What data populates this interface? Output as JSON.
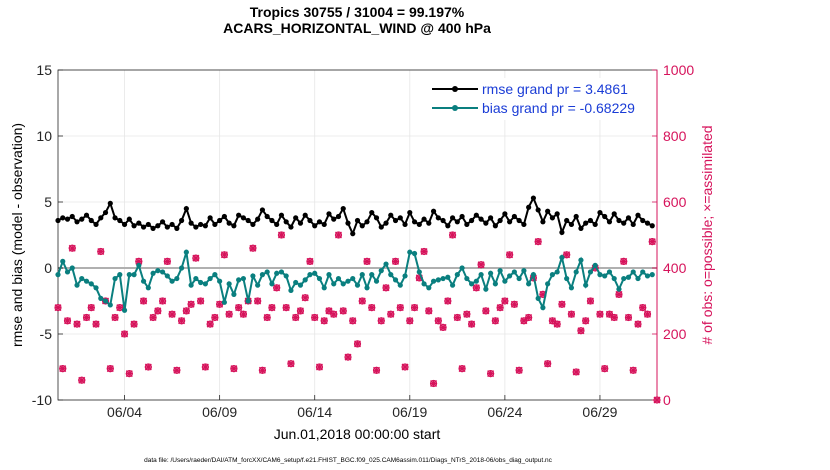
{
  "chart_data": {
    "type": "line",
    "title": [
      "Tropics 30755 / 31004 = 99.197%",
      "ACARS_HORIZONTAL_WIND @ 400 hPa"
    ],
    "xlabel": "Jun.01,2018 00:00:00 start",
    "ylabel_left": "rmse and bias (model - observation)",
    "ylabel_right": "# of obs: o=possible; ×=assimilated",
    "ylim_left": [
      -10,
      15
    ],
    "ylim_right": [
      0,
      1000
    ],
    "yticks_left": [
      "-10",
      "-5",
      "0",
      "5",
      "10",
      "15"
    ],
    "yticks_right": [
      "0",
      "200",
      "400",
      "600",
      "800",
      "1000"
    ],
    "xticks": [
      "06/04",
      "06/09",
      "06/14",
      "06/19",
      "06/24",
      "06/29"
    ],
    "xtick_days": [
      3.5,
      8.5,
      13.5,
      18.5,
      23.5,
      28.5
    ],
    "xlim_days": [
      0,
      31.5
    ],
    "step_hours": 6,
    "grid": true,
    "legend_position": "top-right",
    "colors": {
      "rmse": "#000000",
      "bias": "#0a7f7f",
      "obs": "#d6135b",
      "zero": "#b0b0b0"
    },
    "series": [
      {
        "name": "rmse grand pr = 3.4861",
        "values": [
          3.6,
          3.8,
          3.7,
          3.9,
          3.5,
          3.7,
          4.0,
          3.6,
          3.3,
          3.8,
          4.2,
          4.9,
          3.8,
          3.6,
          3.3,
          3.7,
          3.2,
          3.4,
          3.1,
          3.3,
          3.0,
          3.2,
          3.5,
          3.1,
          3.3,
          3.0,
          3.6,
          4.5,
          3.4,
          3.1,
          3.3,
          3.2,
          3.8,
          3.3,
          3.6,
          3.9,
          3.4,
          3.2,
          4.0,
          3.8,
          3.6,
          3.3,
          3.7,
          4.4,
          3.9,
          3.6,
          3.3,
          4.0,
          3.5,
          3.1,
          3.8,
          3.4,
          4.0,
          3.6,
          3.2,
          3.5,
          3.3,
          4.1,
          3.7,
          3.9,
          4.5,
          3.4,
          2.6,
          3.6,
          3.2,
          3.5,
          4.2,
          3.8,
          3.1,
          3.4,
          4.0,
          3.6,
          3.8,
          3.3,
          4.2,
          3.5,
          3.3,
          3.7,
          3.4,
          4.3,
          3.8,
          3.6,
          3.2,
          3.8,
          3.5,
          3.9,
          3.3,
          3.6,
          4.0,
          3.7,
          3.4,
          3.8,
          3.2,
          3.6,
          4.1,
          3.5,
          3.9,
          3.6,
          3.3,
          4.6,
          5.3,
          4.4,
          3.5,
          4.3,
          3.8,
          4.1,
          2.7,
          3.6,
          3.3,
          3.9,
          3.0,
          3.4,
          3.6,
          3.3,
          4.2,
          3.9,
          3.5,
          4.1,
          3.6,
          3.4,
          3.8,
          3.3,
          4.0,
          3.6,
          3.4,
          3.2
        ]
      },
      {
        "name": "bias grand pr = -0.68229",
        "values": [
          -0.5,
          0.5,
          -0.3,
          0.0,
          -1.3,
          -0.8,
          -1.0,
          -1.2,
          -1.5,
          -2.3,
          -2.5,
          -2.8,
          -0.8,
          -0.5,
          -3.2,
          -0.5,
          -0.5,
          0.2,
          -1.0,
          -1.5,
          -0.4,
          -0.2,
          -0.3,
          -0.6,
          -1.0,
          -0.8,
          0.0,
          1.2,
          -1.3,
          -0.8,
          -1.1,
          -1.2,
          -0.8,
          -0.5,
          -1.0,
          -2.6,
          -1.2,
          -2.0,
          -0.9,
          -0.8,
          -2.5,
          -0.6,
          -1.3,
          -0.5,
          -0.3,
          -1.2,
          -0.4,
          -0.3,
          -0.6,
          -1.7,
          -1.1,
          -1.3,
          -0.9,
          -0.5,
          -0.4,
          -0.8,
          -1.5,
          -0.5,
          -1.2,
          -0.8,
          -1.2,
          -1.0,
          -0.8,
          -1.3,
          -0.5,
          -1.5,
          -0.5,
          -1.0,
          -0.2,
          0.3,
          -0.5,
          -0.9,
          -1.3,
          -0.6,
          1.2,
          1.1,
          -0.3,
          -1.2,
          -1.5,
          -1.0,
          -0.9,
          -0.8,
          -0.7,
          -1.3,
          -0.5,
          0.0,
          -0.8,
          -1.2,
          -1.0,
          -0.5,
          -1.6,
          -0.4,
          -1.2,
          -0.2,
          -1.0,
          -0.6,
          -0.3,
          -0.8,
          -0.2,
          -1.2,
          -0.5,
          -2.3,
          -3.0,
          -1.2,
          -0.5,
          -0.3,
          0.8,
          -0.8,
          -1.5,
          -0.3,
          0.6,
          -1.3,
          -0.3,
          0.2,
          -0.5,
          -0.6,
          -0.3,
          -0.8,
          -1.6,
          -0.8,
          -0.7,
          -0.3,
          -0.8,
          -0.3,
          -0.6,
          -0.5
        ]
      },
      {
        "name": "obs possible",
        "marker": "o",
        "values": [
          280,
          95,
          240,
          460,
          230,
          60,
          250,
          280,
          230,
          450,
          300,
          95,
          250,
          280,
          200,
          80,
          230,
          420,
          300,
          100,
          250,
          270,
          300,
          420,
          260,
          90,
          240,
          270,
          290,
          430,
          300,
          100,
          230,
          250,
          290,
          440,
          260,
          95,
          280,
          260,
          300,
          460,
          300,
          90,
          250,
          280,
          340,
          500,
          280,
          110,
          250,
          270,
          310,
          420,
          250,
          100,
          240,
          270,
          260,
          500,
          270,
          130,
          240,
          170,
          300,
          420,
          280,
          90,
          240,
          340,
          260,
          420,
          280,
          100,
          240,
          280,
          370,
          450,
          270,
          50,
          240,
          220,
          300,
          500,
          250,
          95,
          260,
          230,
          340,
          410,
          270,
          80,
          240,
          280,
          300,
          440,
          290,
          90,
          240,
          250,
          370,
          480,
          320,
          110,
          240,
          230,
          290,
          440,
          260,
          85,
          210,
          240,
          300,
          400,
          260,
          95,
          260,
          250,
          320,
          420,
          250,
          90,
          230,
          280,
          260,
          480,
          0
        ]
      },
      {
        "name": "obs assimilated",
        "marker": "x",
        "values": [
          280,
          95,
          240,
          460,
          230,
          60,
          250,
          280,
          230,
          450,
          300,
          95,
          250,
          280,
          200,
          80,
          230,
          420,
          300,
          100,
          250,
          270,
          300,
          420,
          260,
          90,
          240,
          270,
          290,
          430,
          300,
          100,
          230,
          250,
          290,
          440,
          260,
          95,
          280,
          260,
          300,
          460,
          300,
          90,
          250,
          280,
          340,
          500,
          280,
          110,
          250,
          270,
          310,
          420,
          250,
          100,
          240,
          270,
          260,
          500,
          270,
          130,
          240,
          170,
          300,
          420,
          280,
          90,
          240,
          340,
          260,
          420,
          280,
          100,
          240,
          280,
          370,
          450,
          270,
          50,
          240,
          220,
          300,
          500,
          250,
          95,
          260,
          230,
          340,
          410,
          270,
          80,
          240,
          280,
          300,
          440,
          290,
          90,
          240,
          250,
          370,
          480,
          320,
          110,
          240,
          230,
          290,
          440,
          260,
          85,
          210,
          240,
          300,
          400,
          260,
          95,
          260,
          250,
          320,
          420,
          250,
          90,
          230,
          280,
          260,
          480,
          0
        ]
      }
    ]
  },
  "footer": "data file: /Users/raeder/DAI/ATM_forcXX/CAM6_setup/f.e21.FHIST_BGC.f09_025.CAM6assim.011/Diags_NTrS_2018-06/obs_diag_output.nc"
}
